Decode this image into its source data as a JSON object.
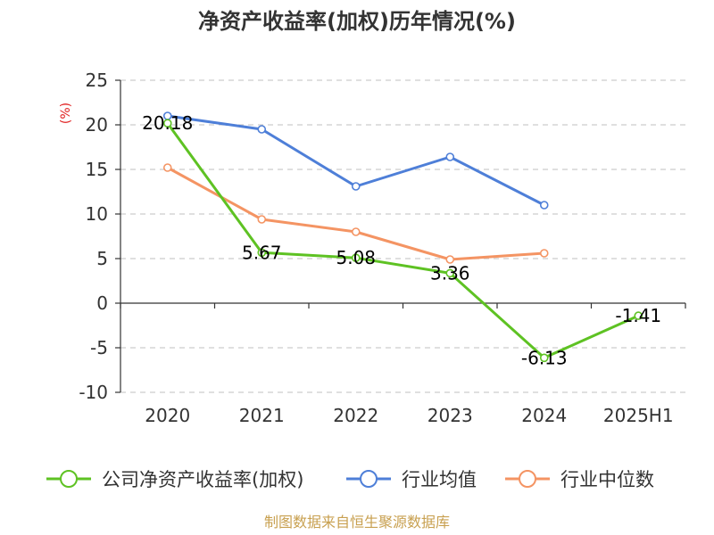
{
  "chart_data": {
    "type": "line",
    "title": "净资产收益率(加权)历年情况(%)",
    "ylabel": "(%)",
    "xlabel": "",
    "categories": [
      "2020",
      "2021",
      "2022",
      "2023",
      "2024",
      "2025H1"
    ],
    "ylim": [
      -10,
      25
    ],
    "yticks": [
      25,
      20,
      15,
      10,
      5,
      0,
      -5,
      -10
    ],
    "grid": true,
    "legend_position": "bottom",
    "series": [
      {
        "name": "公司净资产收益率(加权)",
        "color": "#5ec223",
        "values": [
          20.18,
          5.67,
          5.08,
          3.36,
          -6.13,
          -1.41
        ],
        "labels": [
          "20.18",
          "5.67",
          "5.08",
          "3.36",
          "-6.13",
          "-1.41"
        ]
      },
      {
        "name": "行业均值",
        "color": "#4e7fd8",
        "values": [
          21.0,
          19.5,
          13.1,
          16.4,
          11.0,
          null
        ]
      },
      {
        "name": "行业中位数",
        "color": "#f49463",
        "values": [
          15.2,
          9.4,
          8.0,
          4.9,
          5.6,
          null
        ]
      }
    ]
  },
  "colors": {
    "unit_label": "#e02020",
    "source": "#c8a050",
    "axis": "#333333",
    "grid": "#cccccc"
  },
  "footer": {
    "source": "制图数据来自恒生聚源数据库"
  }
}
